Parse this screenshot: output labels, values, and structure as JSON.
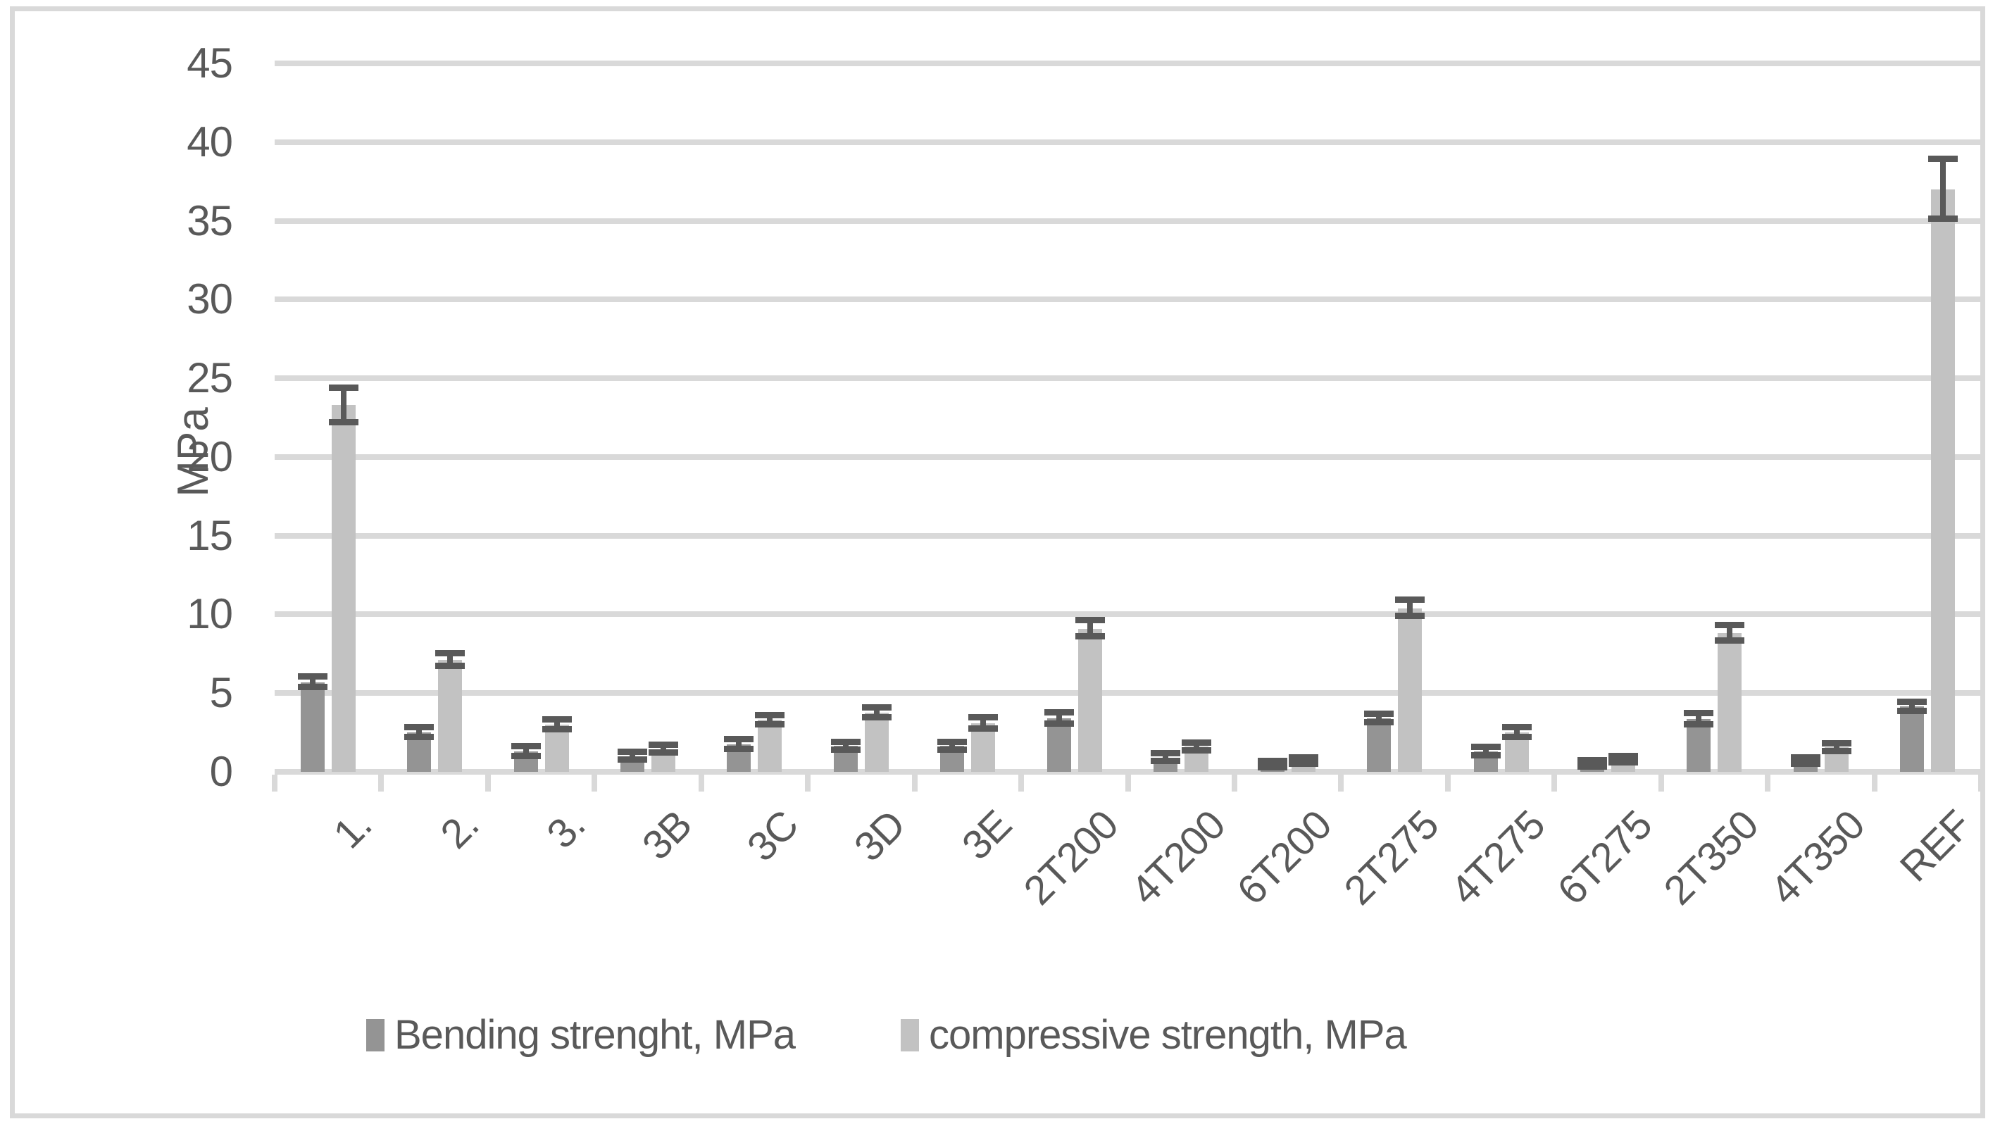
{
  "figure": {
    "background": "#ffffff",
    "border_color": "#d9d9d9",
    "text_color": "#595959",
    "gridline_color": "#d9d9d9",
    "error_bar_color": "#595959"
  },
  "chart_data": {
    "type": "bar",
    "title": "",
    "xlabel": "",
    "ylabel": "MPa",
    "ylim": [
      0,
      45
    ],
    "ytick_step": 5,
    "ytick_labels": [
      "0",
      "5",
      "10",
      "15",
      "20",
      "25",
      "30",
      "35",
      "40",
      "45"
    ],
    "grid": true,
    "legend_position": "bottom",
    "categories": [
      "1.",
      "2.",
      "3.",
      "3B",
      "3C",
      "3D",
      "3E",
      "2T200",
      "4T200",
      "6T200",
      "2T275",
      "4T275",
      "6T275",
      "2T350",
      "4T350",
      "REF"
    ],
    "series": [
      {
        "name": "Bending strenght, MPa",
        "color": "#949494",
        "values": [
          5.7,
          2.5,
          1.3,
          1.0,
          1.75,
          1.65,
          1.65,
          3.4,
          0.9,
          0.45,
          3.4,
          1.3,
          0.5,
          3.35,
          0.7,
          4.15
        ],
        "errors": [
          0.35,
          0.3,
          0.3,
          0.25,
          0.3,
          0.25,
          0.25,
          0.35,
          0.25,
          0.2,
          0.25,
          0.25,
          0.2,
          0.35,
          0.2,
          0.3
        ]
      },
      {
        "name": "compressive strength, MPa",
        "color": "#c2c2c2",
        "values": [
          23.3,
          7.1,
          3.0,
          1.45,
          3.3,
          3.75,
          3.1,
          9.1,
          1.6,
          0.7,
          10.4,
          2.5,
          0.8,
          8.8,
          1.55,
          37.0
        ],
        "errors": [
          1.1,
          0.4,
          0.3,
          0.25,
          0.3,
          0.3,
          0.35,
          0.5,
          0.25,
          0.2,
          0.5,
          0.3,
          0.2,
          0.5,
          0.25,
          1.9
        ]
      }
    ]
  }
}
